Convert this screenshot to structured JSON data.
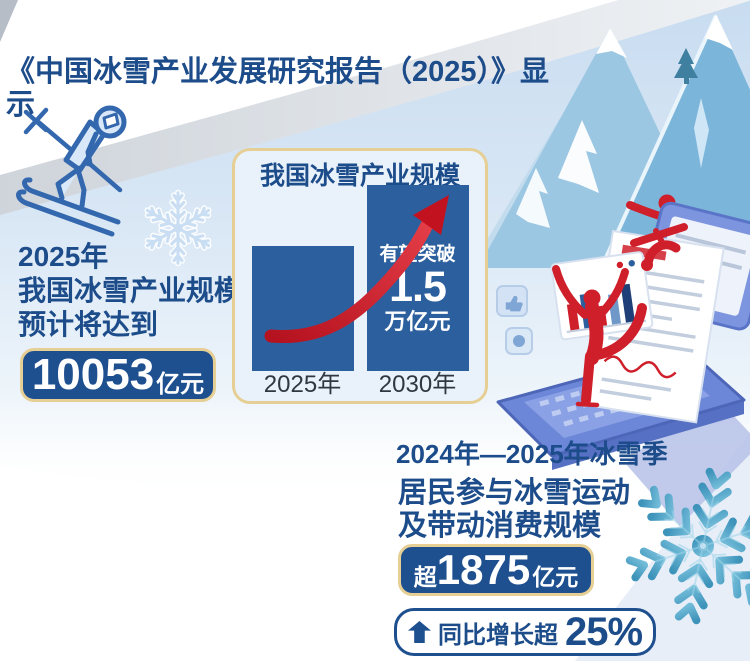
{
  "colors": {
    "navy": "#1d4c8a",
    "box_navy": "#1e4f8f",
    "gold": "#e6cf95",
    "bar_blue": "#2c5f9e",
    "red": "#d5232e",
    "panel_bg": "#e9f2fb",
    "flake_teal": "#4a9cc4",
    "label_dark": "#2f3740"
  },
  "header": {
    "title": "《中国冰雪产业发展研究报告（2025）》显示"
  },
  "left_stat": {
    "line1": "2025年",
    "line2": "我国冰雪产业规模",
    "line3": "预计将达到",
    "value": "10053",
    "unit": "亿元"
  },
  "chart": {
    "title": "我国冰雪产业规模",
    "annotation_prefix": "有望突破",
    "annotation_value": "1.5",
    "annotation_unit": "万亿元"
  },
  "chart_data": {
    "type": "bar",
    "title": "我国冰雪产业规模",
    "categories": [
      "2025年",
      "2030年"
    ],
    "values": [
      10053,
      15000
    ],
    "unit": "亿元",
    "ylim": [
      0,
      15000
    ],
    "grid": false,
    "legend": "none",
    "note": "2025年我国冰雪产业规模预计将达到10053亿元；2030年有望突破1.5万亿元"
  },
  "bottom_stat": {
    "season": "2024年—2025年冰雪季",
    "line1": "居民参与冰雪运动",
    "line2": "及带动消费规模",
    "value_prefix": "超",
    "value": "1875",
    "unit": "亿元",
    "growth_label": "同比增长超",
    "growth_value": "25%"
  },
  "icons": {
    "decorations": [
      "skier-icon",
      "small-snowflake-icon",
      "large-snowflake-icon",
      "mountains",
      "pine-tree-icon",
      "snowboarder-icon",
      "laptop-illustration",
      "figure-skater-icon",
      "growth-arrow-icon",
      "up-arrow-icon"
    ]
  }
}
